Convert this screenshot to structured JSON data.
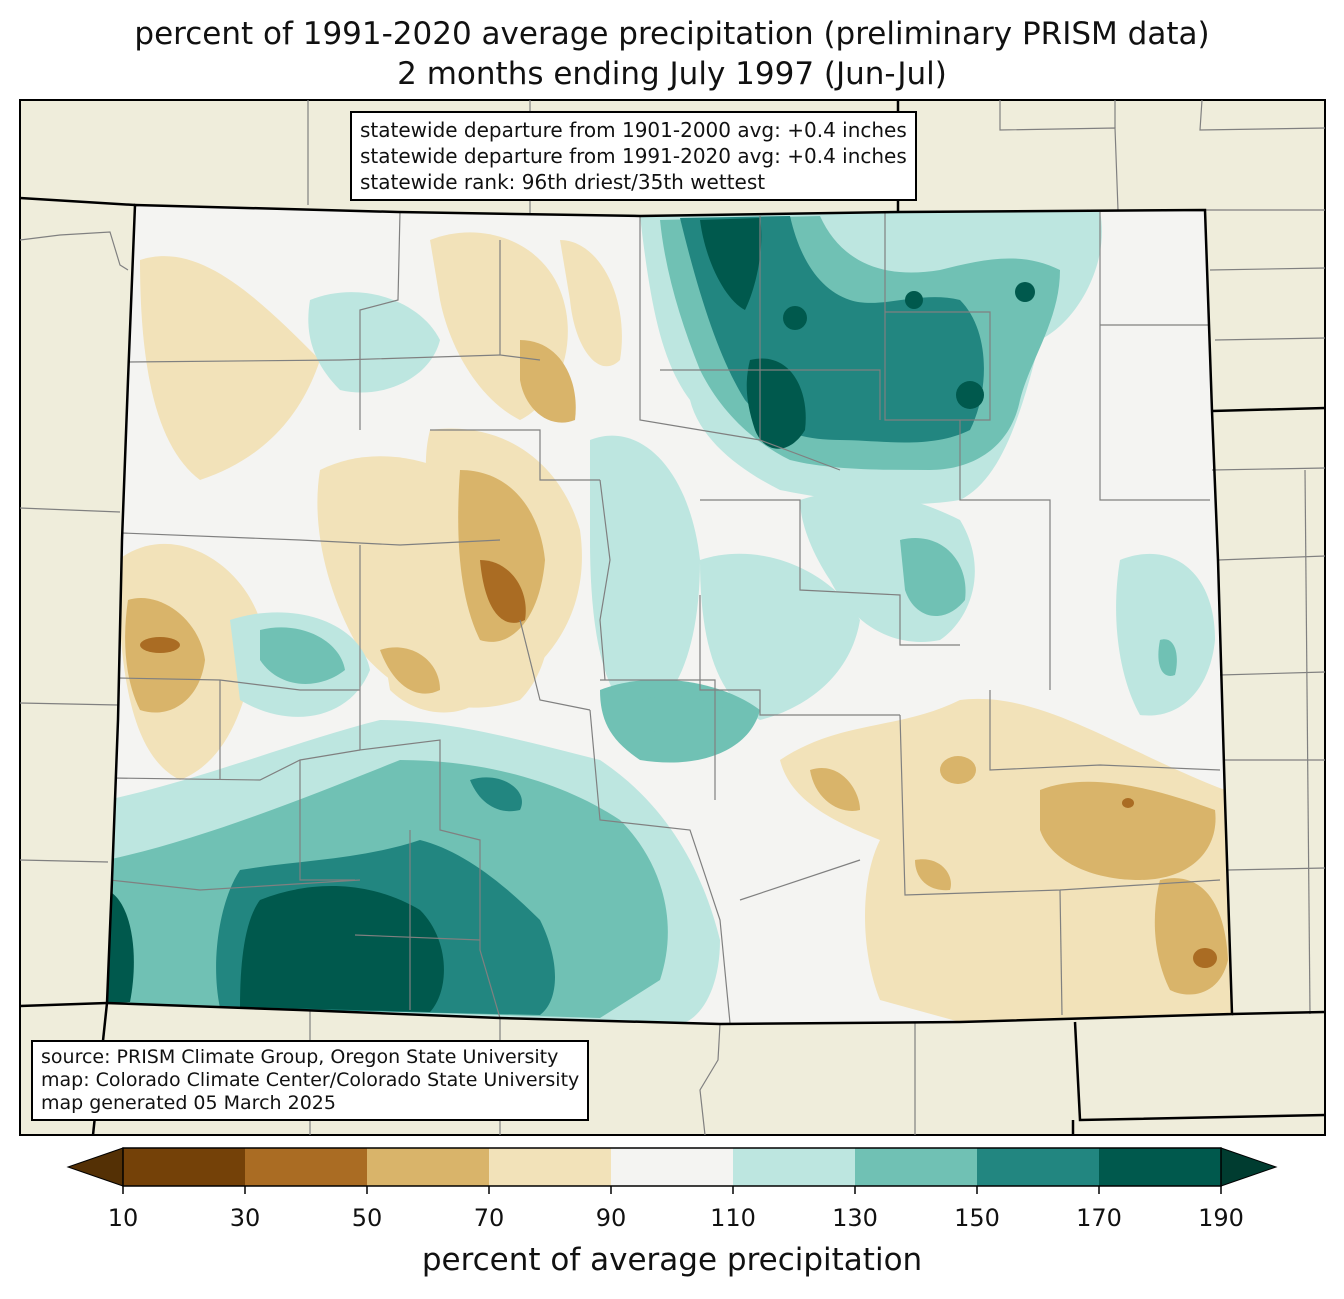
{
  "title": {
    "line1": "percent of 1991-2020 average precipitation (preliminary PRISM data)",
    "line2": "2 months ending July 1997 (Jun-Jul)"
  },
  "stats_box": {
    "line1": "statewide departure from 1901-2000 avg: +0.4 inches",
    "line2": "statewide departure from 1991-2020 avg: +0.4 inches",
    "line3": "statewide rank: 96th driest/35th wettest"
  },
  "source_box": {
    "line1": "source: PRISM Climate Group, Oregon State University",
    "line2": "map: Colorado Climate Center/Colorado State University",
    "line3": "map generated 05 March 2025"
  },
  "colorbar": {
    "title": "percent of average precipitation",
    "ticks": [
      "10",
      "30",
      "50",
      "70",
      "90",
      "110",
      "130",
      "150",
      "170",
      "190"
    ],
    "under_color": "#543005",
    "over_color": "#003c30",
    "bins": [
      {
        "range": "10-30",
        "color": "#744108"
      },
      {
        "range": "30-50",
        "color": "#aa6c23"
      },
      {
        "range": "50-70",
        "color": "#d9b46a"
      },
      {
        "range": "70-90",
        "color": "#f2e2b9"
      },
      {
        "range": "90-110",
        "color": "#f4f4f2"
      },
      {
        "range": "110-130",
        "color": "#bde6e0"
      },
      {
        "range": "130-150",
        "color": "#70c1b4"
      },
      {
        "range": "150-170",
        "color": "#228680"
      },
      {
        "range": "170-190",
        "color": "#00594d"
      }
    ]
  },
  "colors": {
    "land_outside": "#efeddb",
    "state_border": "#000000",
    "county_border": "#808080"
  }
}
